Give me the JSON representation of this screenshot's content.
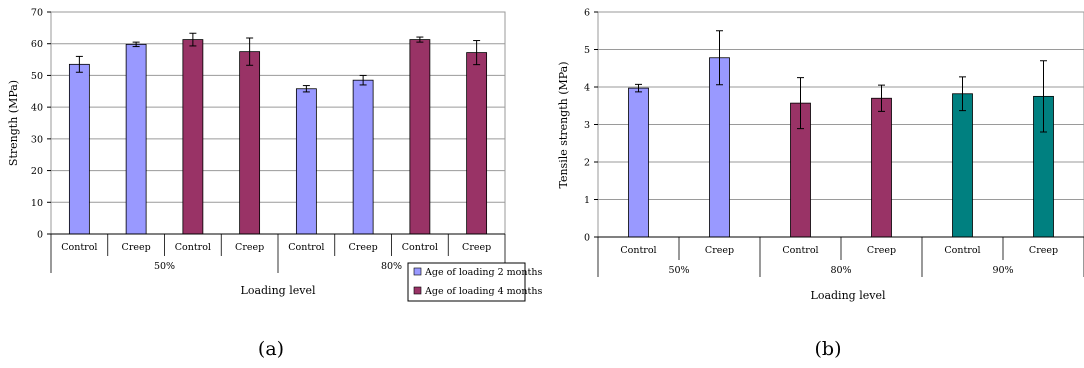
{
  "chart_data": [
    {
      "type": "bar",
      "panel_label": "(a)",
      "ylabel": "Strength (MPa)",
      "xlabel": "Loading level",
      "ylim": [
        0,
        70
      ],
      "yticks": [
        0,
        10,
        20,
        30,
        40,
        50,
        60,
        70
      ],
      "grid": true,
      "categories": [
        "Control",
        "Creep",
        "Control",
        "Creep",
        "Control",
        "Creep",
        "Control",
        "Creep"
      ],
      "groups": [
        {
          "label": "50%",
          "span": [
            0,
            4
          ]
        },
        {
          "label": "80%",
          "span": [
            4,
            8
          ]
        }
      ],
      "values": [
        53.5,
        59.8,
        61.3,
        57.5,
        45.8,
        48.5,
        61.3,
        57.2
      ],
      "errors": [
        2.5,
        0.7,
        2.0,
        4.3,
        1.0,
        1.5,
        0.8,
        3.8
      ],
      "bar_series": [
        0,
        0,
        1,
        1,
        0,
        0,
        1,
        1
      ],
      "legend_position": "bottom-right",
      "legend": [
        {
          "name": "Age of loading 2 months",
          "color": "#9999ff"
        },
        {
          "name": "Age of loading 4 months",
          "color": "#993366"
        }
      ]
    },
    {
      "type": "bar",
      "panel_label": "(b)",
      "ylabel": "Tensile strength (MPa)",
      "xlabel": "Loading level",
      "ylim": [
        0,
        6
      ],
      "yticks": [
        0,
        1,
        2,
        3,
        4,
        5,
        6
      ],
      "grid": true,
      "categories": [
        "Control",
        "Creep",
        "Control",
        "Creep",
        "Control",
        "Creep"
      ],
      "groups": [
        {
          "label": "50%",
          "span": [
            0,
            2
          ]
        },
        {
          "label": "80%",
          "span": [
            2,
            4
          ]
        },
        {
          "label": "90%",
          "span": [
            4,
            6
          ]
        }
      ],
      "values": [
        3.97,
        4.78,
        3.57,
        3.7,
        3.82,
        3.75
      ],
      "errors": [
        0.1,
        0.72,
        0.68,
        0.35,
        0.45,
        0.95
      ],
      "bar_colors": [
        "#9999ff",
        "#9999ff",
        "#993366",
        "#993366",
        "#008080",
        "#008080"
      ]
    }
  ]
}
